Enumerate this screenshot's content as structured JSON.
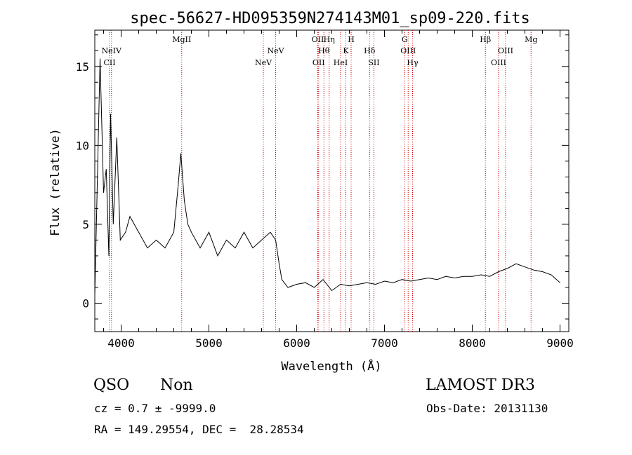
{
  "chart_data": {
    "type": "line",
    "title": "spec-56627-HD095359N274143M01_sp09-220.fits",
    "xlabel": "Wavelength (Å)",
    "ylabel": "Flux (relative)",
    "xlim": [
      3700,
      9100
    ],
    "ylim": [
      -1.8,
      17.3
    ],
    "xticks": [
      4000,
      5000,
      6000,
      7000,
      8000,
      9000
    ],
    "yticks": [
      0,
      5,
      10,
      15
    ],
    "grid": false,
    "line_color": "#000000",
    "marker_color": "#cc0000",
    "series": [
      {
        "x": [
          3700,
          3760,
          3800,
          3830,
          3860,
          3880,
          3910,
          3950,
          3990,
          4050,
          4100,
          4200,
          4300,
          4400,
          4500,
          4600,
          4650,
          4680,
          4700,
          4720,
          4760,
          4800,
          4900,
          5000,
          5100,
          5200,
          5300,
          5400,
          5500,
          5600,
          5700,
          5760,
          5800,
          5830,
          5900,
          6000,
          6100,
          6200,
          6300,
          6400,
          6500,
          6600,
          6700,
          6800,
          6900,
          7000,
          7100,
          7200,
          7300,
          7400,
          7500,
          7600,
          7700,
          7800,
          7900,
          8000,
          8100,
          8200,
          8300,
          8400,
          8500,
          8600,
          8700,
          8800,
          8900,
          9000
        ],
        "y": [
          0.5,
          15.5,
          7.0,
          8.5,
          3.0,
          12.0,
          5.0,
          10.5,
          4.0,
          4.5,
          5.5,
          4.5,
          3.5,
          4.0,
          3.5,
          4.5,
          7.5,
          9.5,
          8.0,
          6.5,
          5.0,
          4.5,
          3.5,
          4.5,
          3.0,
          4.0,
          3.5,
          4.5,
          3.5,
          4.0,
          4.5,
          4.0,
          2.5,
          1.5,
          1.0,
          1.2,
          1.3,
          1.0,
          1.5,
          0.8,
          1.2,
          1.1,
          1.2,
          1.3,
          1.2,
          1.4,
          1.3,
          1.5,
          1.4,
          1.5,
          1.6,
          1.5,
          1.7,
          1.6,
          1.7,
          1.7,
          1.8,
          1.7,
          2.0,
          2.2,
          2.5,
          2.3,
          2.1,
          2.0,
          1.8,
          1.3
        ]
      }
    ],
    "lines": [
      {
        "label": "CII",
        "wavelength": 3868,
        "row": 2
      },
      {
        "label": "NeIV",
        "wavelength": 3890,
        "row": 1
      },
      {
        "label": "MgII",
        "wavelength": 4690,
        "row": 0
      },
      {
        "label": "NeV",
        "wavelength": 5620,
        "row": 2
      },
      {
        "label": "NeV",
        "wavelength": 5760,
        "row": 1
      },
      {
        "label": "OII",
        "wavelength": 6240,
        "row": 0
      },
      {
        "label": "OII",
        "wavelength": 6250,
        "row": 2
      },
      {
        "label": "Hη",
        "wavelength": 6370,
        "row": 0
      },
      {
        "label": "Hθ",
        "wavelength": 6310,
        "row": 1
      },
      {
        "label": "HeI",
        "wavelength": 6500,
        "row": 2
      },
      {
        "label": "K",
        "wavelength": 6560,
        "row": 1
      },
      {
        "label": "H",
        "wavelength": 6620,
        "row": 0
      },
      {
        "label": "Hδ",
        "wavelength": 6830,
        "row": 1
      },
      {
        "label": "SII",
        "wavelength": 6880,
        "row": 2
      },
      {
        "label": "G",
        "wavelength": 7230,
        "row": 0
      },
      {
        "label": "OIII",
        "wavelength": 7270,
        "row": 1
      },
      {
        "label": "Hγ",
        "wavelength": 7320,
        "row": 2
      },
      {
        "label": "Hβ",
        "wavelength": 8150,
        "row": 0
      },
      {
        "label": "OIII",
        "wavelength": 8300,
        "row": 2
      },
      {
        "label": "OIII",
        "wavelength": 8380,
        "row": 1
      },
      {
        "label": "Mg",
        "wavelength": 8670,
        "row": 0
      }
    ]
  },
  "info": {
    "class": "QSO",
    "subclass": "Non",
    "survey": "LAMOST DR3",
    "cz_line": "cz = 0.7 ± -9999.0",
    "obs_date_line": "Obs-Date: 20131130",
    "coords_line": "RA = 149.29554, DEC =  28.28534"
  }
}
